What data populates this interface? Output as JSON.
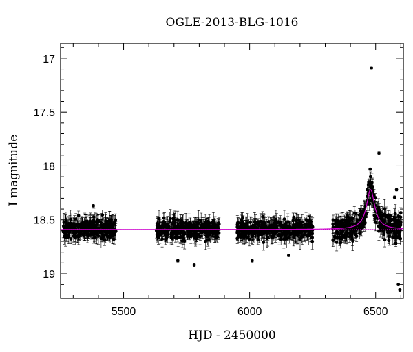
{
  "chart_data": {
    "type": "scatter",
    "title": "OGLE-2013-BLG-1016",
    "xlabel": "HJD - 2450000",
    "ylabel": "I magnitude",
    "xlim": [
      5250,
      6610
    ],
    "ylim": [
      19.23,
      16.86
    ],
    "y_inverted": true,
    "grid": false,
    "x_ticks": [
      "5500",
      "6000",
      "6500"
    ],
    "x_tick_values": [
      5500,
      6000,
      6500
    ],
    "y_ticks": [
      "17",
      "17.5",
      "18",
      "18.5",
      "19"
    ],
    "y_tick_values": [
      17,
      17.5,
      18,
      18.5,
      19
    ],
    "baseline_magnitude": 18.59,
    "model": {
      "type": "line",
      "color": "#cc00cc",
      "peak_hjd": 6480,
      "peak_magnitude": 18.22,
      "baseline_magnitude": 18.59,
      "width_days": 20
    },
    "observing_seasons": [
      {
        "start": 5260,
        "end": 5470,
        "mean": 18.58
      },
      {
        "start": 5630,
        "end": 5880,
        "mean": 18.59
      },
      {
        "start": 5950,
        "end": 6250,
        "mean": 18.59
      },
      {
        "start": 6330,
        "end": 6600,
        "mean": 18.59
      }
    ],
    "notable_points": [
      {
        "x": 6483,
        "y": 17.09
      },
      {
        "x": 6513,
        "y": 17.88
      },
      {
        "x": 6478,
        "y": 18.03
      },
      {
        "x": 6583,
        "y": 18.22
      },
      {
        "x": 6575,
        "y": 18.29
      },
      {
        "x": 5286,
        "y": 18.55
      },
      {
        "x": 5380,
        "y": 18.37
      },
      {
        "x": 5715,
        "y": 18.88
      },
      {
        "x": 5780,
        "y": 18.92
      },
      {
        "x": 5868,
        "y": 18.66
      },
      {
        "x": 6010,
        "y": 18.88
      },
      {
        "x": 6155,
        "y": 18.83
      },
      {
        "x": 6590,
        "y": 19.1
      },
      {
        "x": 6596,
        "y": 19.15
      }
    ],
    "colors": {
      "points": "#000000",
      "model": "#cc00cc",
      "baseline": "#cc00cc"
    }
  }
}
